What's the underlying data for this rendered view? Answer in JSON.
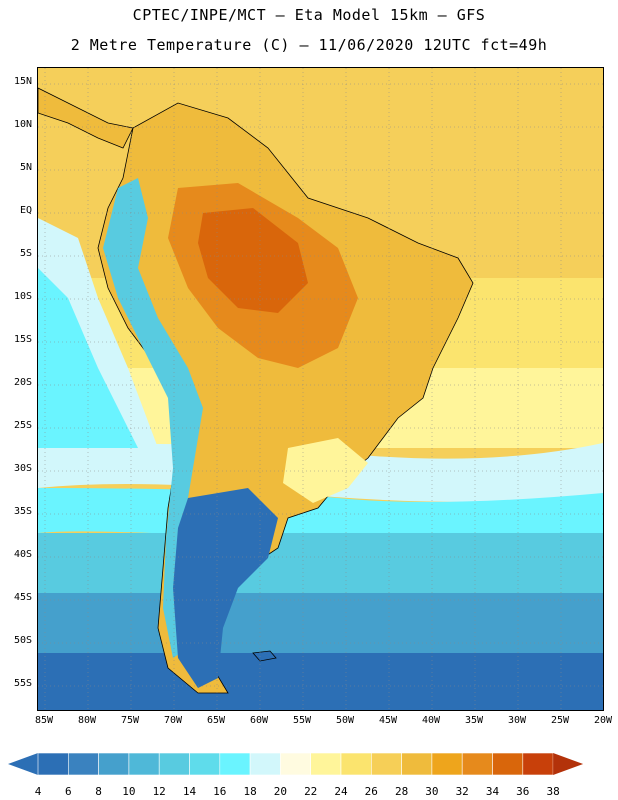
{
  "header": {
    "line1": "CPTEC/INPE/MCT –  Eta Model 15km – GFS",
    "line2": "2 Metre Temperature (C) – 11/06/2020 12UTC fct=49h"
  },
  "map": {
    "variable": "2 Metre Temperature",
    "units": "C",
    "model": "Eta Model 15km",
    "lat_labels": [
      "15N",
      "10N",
      "5N",
      "EQ",
      "5S",
      "10S",
      "15S",
      "20S",
      "25S",
      "30S",
      "35S",
      "40S",
      "45S",
      "50S",
      "55S"
    ],
    "lon_labels": [
      "85W",
      "80W",
      "75W",
      "70W",
      "65W",
      "60W",
      "55W",
      "50W",
      "45W",
      "40W",
      "35W",
      "30W",
      "25W",
      "20W"
    ]
  },
  "legend": {
    "labels": [
      "4",
      "6",
      "8",
      "10",
      "12",
      "14",
      "16",
      "18",
      "20",
      "22",
      "24",
      "26",
      "28",
      "30",
      "32",
      "34",
      "36",
      "38"
    ],
    "colors": [
      "#2c6fb5",
      "#3a82bf",
      "#45a0cc",
      "#4fb8d8",
      "#58cbe0",
      "#5fdceb",
      "#6af4ff",
      "#d2f7fb",
      "#fffbe0",
      "#fff59a",
      "#fbe46e",
      "#f6cf57",
      "#efbb3c",
      "#eea51c",
      "#e68a1c",
      "#d9660b",
      "#c8400a",
      "#b3320a"
    ]
  }
}
